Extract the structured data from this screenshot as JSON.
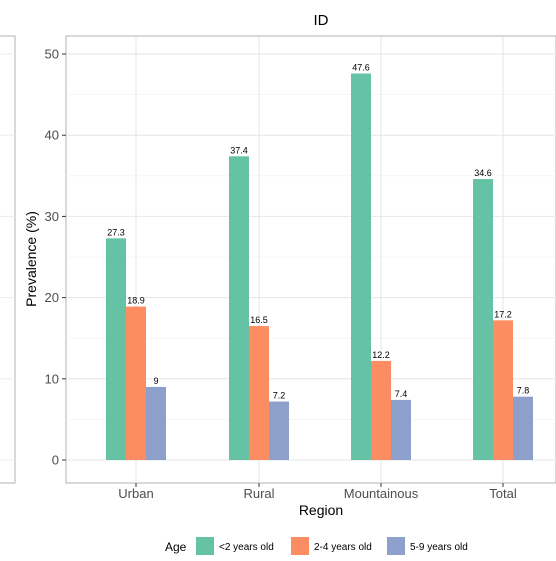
{
  "chart_data": {
    "type": "bar",
    "title": "ID",
    "xlabel": "Region",
    "ylabel": "Prevalence (%)",
    "ylim": [
      0,
      52
    ],
    "yticks": [
      0,
      10,
      20,
      30,
      40,
      50
    ],
    "grid": true,
    "legend_position": "bottom",
    "legend_title": "Age",
    "categories": [
      "Urban",
      "Rural",
      "Mountainous",
      "Total"
    ],
    "series": [
      {
        "name": "<2 years old",
        "color": "#66c2a5",
        "values": [
          27.3,
          37.4,
          47.6,
          34.6
        ],
        "labels": [
          "27.3",
          "37.4",
          "47.6",
          "34.6"
        ]
      },
      {
        "name": "2-4 years old",
        "color": "#fc8d62",
        "values": [
          18.9,
          16.5,
          12.2,
          17.2
        ],
        "labels": [
          "18.9",
          "16.5",
          "12.2",
          "17.2"
        ]
      },
      {
        "name": "5-9 years old",
        "color": "#8da0cb",
        "values": [
          9,
          7.2,
          7.4,
          7.8
        ],
        "labels": [
          "9",
          "7.2",
          "7.4",
          "7.8"
        ]
      }
    ]
  }
}
